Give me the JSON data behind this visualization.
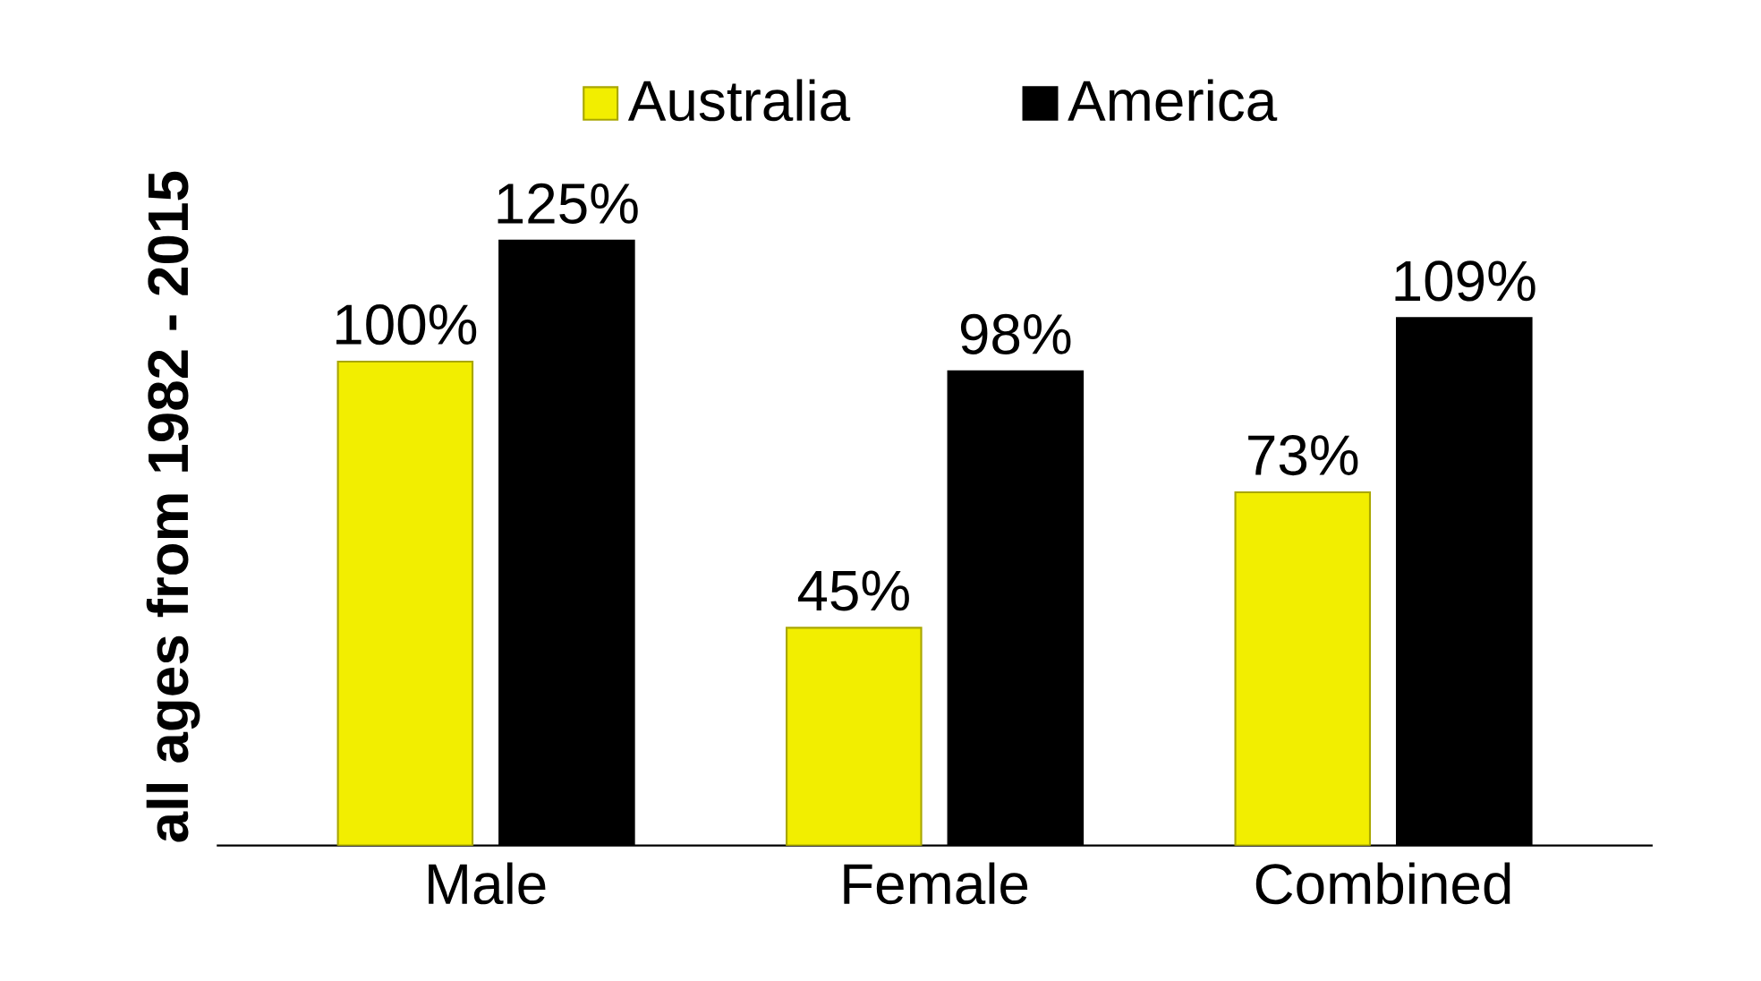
{
  "chart_data": {
    "type": "bar",
    "ylabel": "all ages from 1982 - 2015",
    "categories": [
      "Male",
      "Female",
      "Combined"
    ],
    "series": [
      {
        "name": "Australia",
        "color": "#f2ee00",
        "values": [
          100,
          45,
          73
        ],
        "value_labels": [
          "100%",
          "45%",
          "73%"
        ]
      },
      {
        "name": "America",
        "color": "#000000",
        "values": [
          125,
          98,
          109
        ],
        "value_labels": [
          "125%",
          "98%",
          "109%"
        ]
      }
    ],
    "tick_labels": "x",
    "legend": "top"
  }
}
